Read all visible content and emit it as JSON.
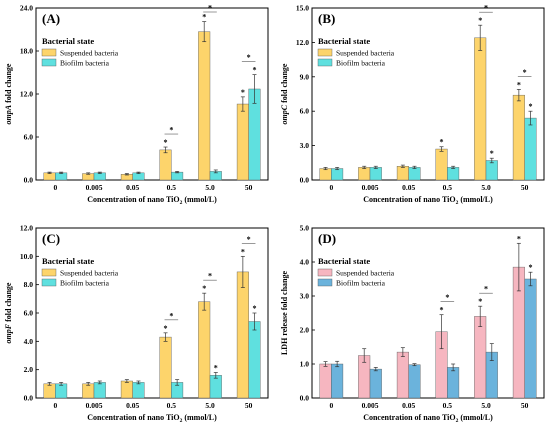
{
  "colors": {
    "suspended_yellow": "#fdd46b",
    "biofilm_cyan": "#5fe0df",
    "suspended_pink": "#f6b6c0",
    "biofilm_blue": "#6bb3dc",
    "axis": "#000000",
    "error_bar": "#333333"
  },
  "chart_data": [
    {
      "type": "bar",
      "panel": "(A)",
      "categories": [
        "0",
        "0.005",
        "0.05",
        "0.5",
        "5.0",
        "50"
      ],
      "xlabel": "Concentration of nano TiO₂ (mmol/L)",
      "xlabel_main": "Concentration of nano TiO",
      "xlabel_sub": "2",
      "xlabel_tail": " (mmol/L)",
      "ylabel": "ompA fold change",
      "ylabel_italic": "ompA",
      "ylabel_rest": " fold change",
      "ylim": [
        0,
        24
      ],
      "yticks": [
        "0.0",
        "6.0",
        "12.0",
        "18.0",
        "24.0"
      ],
      "yticks_values": [
        0,
        6,
        12,
        18,
        24
      ],
      "legend_title": "Bacterial state",
      "legend_placement": "top-left",
      "palette": "yellow-cyan",
      "series": [
        {
          "name": "Suspended bacteria",
          "values": [
            1.0,
            0.9,
            0.8,
            4.2,
            20.7,
            10.6
          ],
          "errors": [
            0.1,
            0.1,
            0.1,
            0.4,
            1.4,
            1.0
          ]
        },
        {
          "name": "Biofilm bacteria",
          "values": [
            1.0,
            1.0,
            1.0,
            1.1,
            1.2,
            12.7
          ],
          "errors": [
            0.1,
            0.1,
            0.1,
            0.1,
            0.2,
            2.0
          ]
        }
      ],
      "sig": [
        {
          "category": 3,
          "marks": [
            "*"
          ],
          "bracket": true
        },
        {
          "category": 4,
          "marks": [
            "*"
          ],
          "bracket": true
        },
        {
          "category": 5,
          "marks": [
            "*",
            "*"
          ],
          "bracket": true
        }
      ]
    },
    {
      "type": "bar",
      "panel": "(B)",
      "categories": [
        "0",
        "0.005",
        "0.05",
        "0.5",
        "5.0",
        "50"
      ],
      "xlabel": "Concentration of nano TiO₂ (mmol/L)",
      "xlabel_main": "Concentration of nano TiO",
      "xlabel_sub": "2",
      "xlabel_tail": " (mmol/L)",
      "ylabel": "ompC fold change",
      "ylabel_italic": "ompC",
      "ylabel_rest": " fold change",
      "ylim": [
        0,
        15
      ],
      "yticks": [
        "0.0",
        "3.0",
        "6.0",
        "9.0",
        "12.0",
        "15.0"
      ],
      "yticks_values": [
        0,
        3,
        6,
        9,
        12,
        15
      ],
      "legend_title": "Bacterial state",
      "legend_placement": "top-left",
      "palette": "yellow-cyan",
      "series": [
        {
          "name": "Suspended bacteria",
          "values": [
            1.0,
            1.1,
            1.2,
            2.7,
            12.4,
            7.4
          ],
          "errors": [
            0.1,
            0.1,
            0.1,
            0.2,
            1.1,
            0.5
          ]
        },
        {
          "name": "Biofilm bacteria",
          "values": [
            1.0,
            1.1,
            1.1,
            1.1,
            1.7,
            5.4
          ],
          "errors": [
            0.1,
            0.1,
            0.1,
            0.1,
            0.2,
            0.6
          ]
        }
      ],
      "sig": [
        {
          "category": 3,
          "marks": [
            "*"
          ],
          "bracket": false
        },
        {
          "category": 4,
          "marks": [
            "*",
            "*"
          ],
          "bracket": true
        },
        {
          "category": 5,
          "marks": [
            "*",
            "*"
          ],
          "bracket": true
        }
      ]
    },
    {
      "type": "bar",
      "panel": "(C)",
      "categories": [
        "0",
        "0.005",
        "0.05",
        "0.5",
        "5.0",
        "50"
      ],
      "xlabel": "Concentration of nano TiO₂ (mmol/L)",
      "xlabel_main": "Concentration of nano TiO",
      "xlabel_sub": "2",
      "xlabel_tail": " (mmol/L)",
      "ylabel": "ompF fold change",
      "ylabel_italic": "ompF",
      "ylabel_rest": " fold change",
      "ylim": [
        0,
        12
      ],
      "yticks": [
        "0.0",
        "2.0",
        "4.0",
        "6.0",
        "8.0",
        "10.0",
        "12.0"
      ],
      "yticks_values": [
        0,
        2,
        4,
        6,
        8,
        10,
        12
      ],
      "legend_title": "Bacterial state",
      "legend_placement": "top-left",
      "palette": "yellow-cyan",
      "series": [
        {
          "name": "Suspended bacteria",
          "values": [
            1.0,
            1.0,
            1.2,
            4.3,
            6.8,
            8.9
          ],
          "errors": [
            0.1,
            0.1,
            0.1,
            0.3,
            0.6,
            1.1
          ]
        },
        {
          "name": "Biofilm bacteria",
          "values": [
            1.0,
            1.1,
            1.1,
            1.1,
            1.6,
            5.4
          ],
          "errors": [
            0.1,
            0.1,
            0.1,
            0.2,
            0.2,
            0.6
          ]
        }
      ],
      "sig": [
        {
          "category": 3,
          "marks": [
            "*"
          ],
          "bracket": true
        },
        {
          "category": 4,
          "marks": [
            "*",
            "*"
          ],
          "bracket": true
        },
        {
          "category": 5,
          "marks": [
            "*",
            "*"
          ],
          "bracket": true
        }
      ]
    },
    {
      "type": "bar",
      "panel": "(D)",
      "categories": [
        "0",
        "0.005",
        "0.05",
        "0.5",
        "5.0",
        "50"
      ],
      "xlabel": "Concentration of nano TiO₂ (mmol/L)",
      "xlabel_main": "Concentration of nano TiO",
      "xlabel_sub": "2",
      "xlabel_tail": " (mmol/L)",
      "ylabel": "LDH release fold change",
      "ylabel_italic": "",
      "ylabel_rest": "LDH release fold change",
      "ylim": [
        0,
        5
      ],
      "yticks": [
        "0.0",
        "1.0",
        "2.0",
        "3.0",
        "4.0",
        "5.0"
      ],
      "yticks_values": [
        0,
        1,
        2,
        3,
        4,
        5
      ],
      "legend_title": "Bacterial state",
      "legend_placement": "top-left",
      "palette": "pink-blue",
      "series": [
        {
          "name": "Suspended bacteria",
          "values": [
            1.0,
            1.25,
            1.35,
            1.95,
            2.4,
            3.85
          ],
          "errors": [
            0.07,
            0.2,
            0.13,
            0.5,
            0.3,
            0.7
          ]
        },
        {
          "name": "Biofilm bacteria",
          "values": [
            1.0,
            0.85,
            0.98,
            0.9,
            1.35,
            3.5
          ],
          "errors": [
            0.08,
            0.05,
            0.03,
            0.1,
            0.25,
            0.2
          ]
        }
      ],
      "sig": [
        {
          "category": 3,
          "marks": [
            "*"
          ],
          "bracket": true
        },
        {
          "category": 4,
          "marks": [
            "*"
          ],
          "bracket": true
        },
        {
          "category": 5,
          "marks": [
            "*",
            "*"
          ],
          "bracket": false
        }
      ]
    }
  ]
}
